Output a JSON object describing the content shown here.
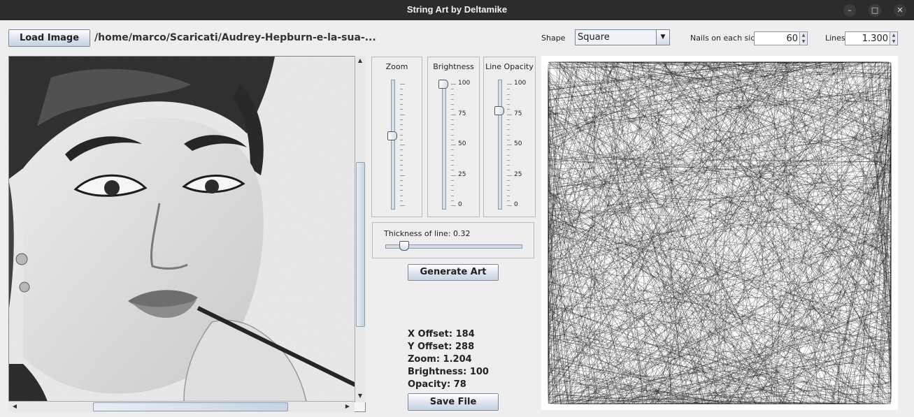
{
  "window": {
    "title": "String Art by Deltamike"
  },
  "toolbar": {
    "load_label": "Load Image",
    "file_path": "/home/marco/Scaricati/Audrey-Hepburn-e-la-sua-...",
    "shape_label": "Shape",
    "shape_value": "Square",
    "nails_label": "Nails on each side",
    "nails_value": "60",
    "lines_label": "Lines",
    "lines_value": "1.300"
  },
  "sliders": {
    "zoom": {
      "label": "Zoom",
      "value_fraction": 0.57
    },
    "brightness": {
      "label": "Brightness",
      "value": 100,
      "ticks": [
        "100",
        "75",
        "50",
        "25",
        "0"
      ]
    },
    "opacity": {
      "label": "Line Opacity",
      "value": 78,
      "ticks": [
        "100",
        "75",
        "50",
        "25",
        "0"
      ]
    }
  },
  "thickness": {
    "label": "Thickness of line: 0.32",
    "value_fraction": 0.11
  },
  "actions": {
    "generate_label": "Generate Art",
    "save_label": "Save File"
  },
  "stats": {
    "x_offset": "X Offset: 184",
    "y_offset": "Y Offset: 288",
    "zoom": "Zoom: 1.204",
    "brightness": "Brightness: 100",
    "opacity": "Opacity: 78"
  }
}
